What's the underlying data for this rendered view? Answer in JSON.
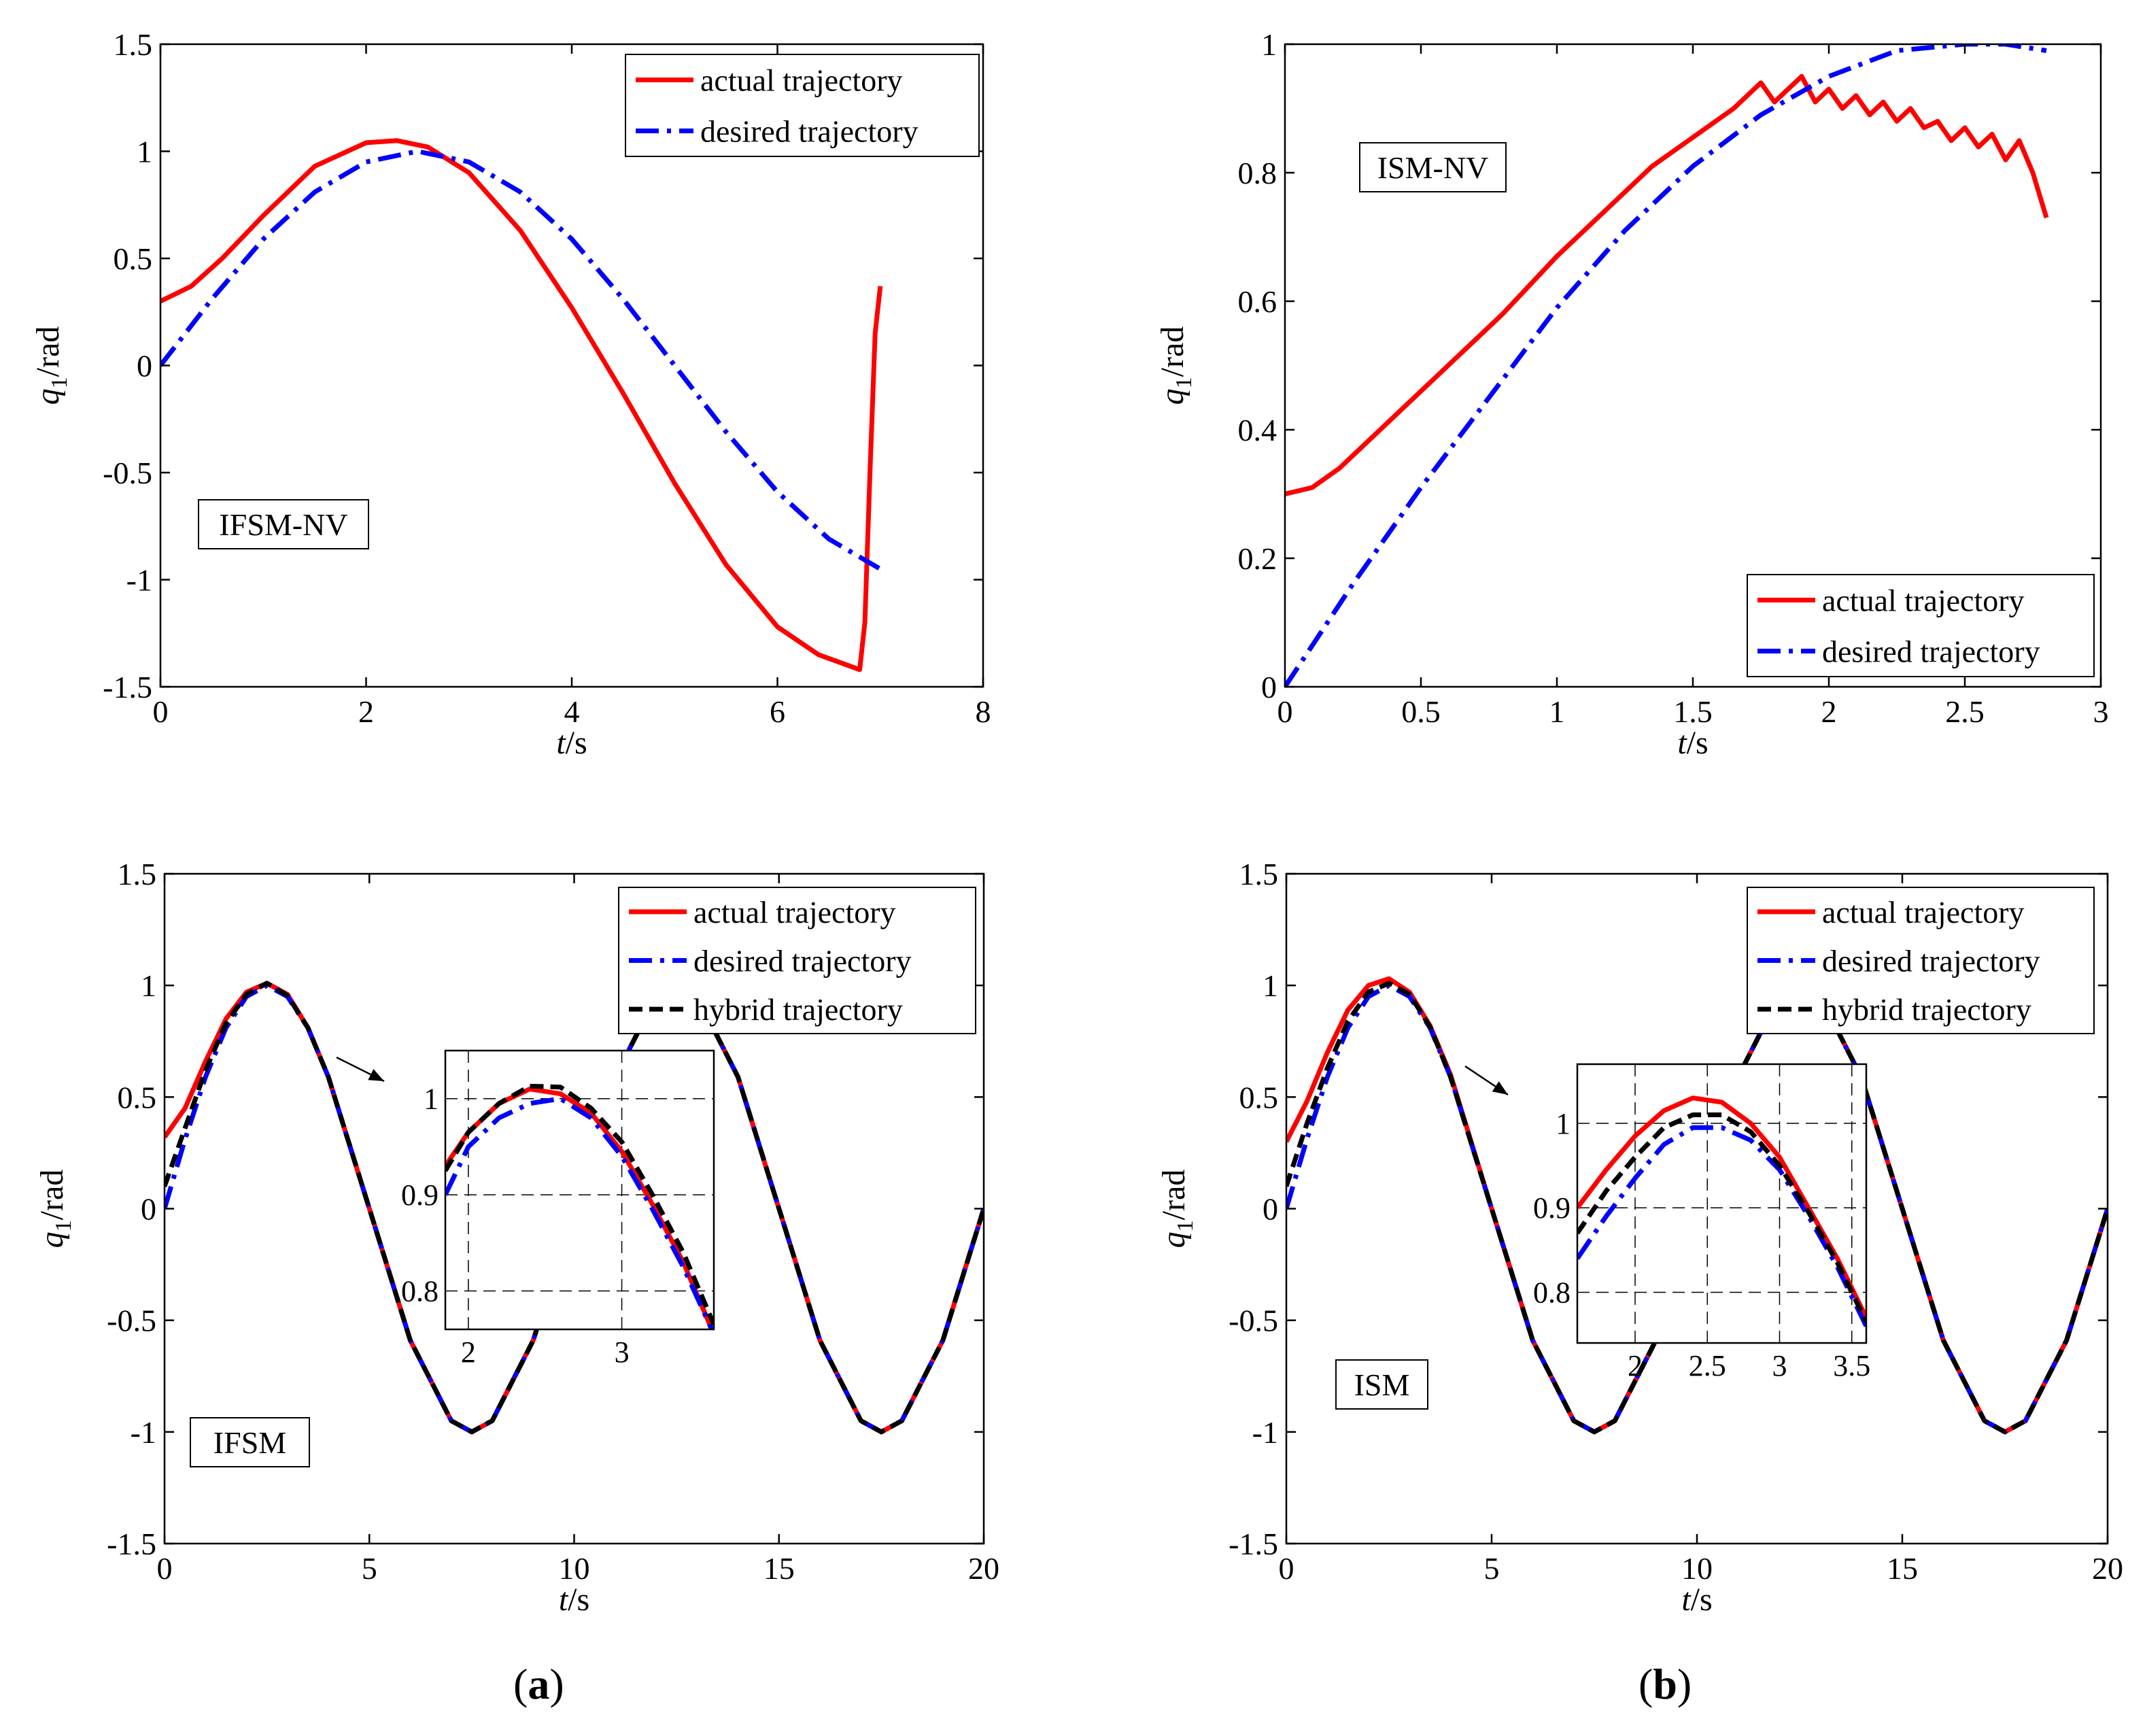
{
  "figure": {
    "captions": [
      {
        "open": "(",
        "letter": "a",
        "close": ")"
      },
      {
        "open": "(",
        "letter": "b",
        "close": ")"
      }
    ]
  },
  "colors": {
    "actual": "#ff0000",
    "desired": "#0000ff",
    "hybrid": "#000000",
    "axis": "#000000",
    "grid": "#000000"
  },
  "chart_data": [
    {
      "id": "top-left",
      "type": "line",
      "label": "IFSM-NV",
      "xlabel_var": "t",
      "xlabel_unit": "/s",
      "ylabel_var": "q",
      "ylabel_sub": "1",
      "ylabel_unit": "/rad",
      "xlim": [
        0,
        8
      ],
      "ylim": [
        -1.5,
        1.5
      ],
      "xticks": [
        0,
        2,
        4,
        6,
        8
      ],
      "xtick_labels": [
        "0",
        "2",
        "4",
        "6",
        "8"
      ],
      "yticks": [
        -1.5,
        -1,
        -0.5,
        0,
        0.5,
        1,
        1.5
      ],
      "ytick_labels": [
        "-1.5",
        "-1",
        "-0.5",
        "0",
        "0.5",
        "1",
        "1.5"
      ],
      "legend_position": "top-right",
      "series": [
        {
          "name": "actual trajectory",
          "style": "solid",
          "color": "#ff0000",
          "x": [
            0,
            0.3,
            0.6,
            1.0,
            1.5,
            2.0,
            2.3,
            2.6,
            3.0,
            3.5,
            4.0,
            4.5,
            5.0,
            5.5,
            6.0,
            6.4,
            6.8,
            6.85,
            6.9,
            6.95,
            7.0
          ],
          "y": [
            0.3,
            0.37,
            0.5,
            0.7,
            0.93,
            1.04,
            1.05,
            1.02,
            0.9,
            0.63,
            0.27,
            -0.13,
            -0.55,
            -0.93,
            -1.22,
            -1.35,
            -1.42,
            -1.2,
            -0.5,
            0.15,
            0.37
          ]
        },
        {
          "name": "desired trajectory",
          "style": "dashdot",
          "color": "#0000ff",
          "x": [
            0,
            0.5,
            1.0,
            1.5,
            2.0,
            2.5,
            3.0,
            3.5,
            4.0,
            4.5,
            5.0,
            5.5,
            6.0,
            6.5,
            7.0
          ],
          "y": [
            0,
            0.31,
            0.59,
            0.81,
            0.95,
            1.0,
            0.95,
            0.81,
            0.59,
            0.31,
            0,
            -0.31,
            -0.59,
            -0.81,
            -0.95
          ]
        }
      ]
    },
    {
      "id": "top-right",
      "type": "line",
      "label": "ISM-NV",
      "xlabel_var": "t",
      "xlabel_unit": "/s",
      "ylabel_var": "q",
      "ylabel_sub": "1",
      "ylabel_unit": "/rad",
      "xlim": [
        0,
        3
      ],
      "ylim": [
        0,
        1
      ],
      "xticks": [
        0,
        0.5,
        1,
        1.5,
        2,
        2.5,
        3
      ],
      "xtick_labels": [
        "0",
        "0.5",
        "1",
        "1.5",
        "2",
        "2.5",
        "3"
      ],
      "yticks": [
        0,
        0.2,
        0.4,
        0.6,
        0.8,
        1
      ],
      "ytick_labels": [
        "0",
        "0.2",
        "0.4",
        "0.6",
        "0.8",
        "1"
      ],
      "legend_position": "bottom-right",
      "series": [
        {
          "name": "actual trajectory",
          "style": "solid",
          "color": "#ff0000",
          "x": [
            0,
            0.1,
            0.2,
            0.4,
            0.6,
            0.8,
            1.0,
            1.2,
            1.35,
            1.45,
            1.55,
            1.65,
            1.75,
            1.8,
            1.85,
            1.9,
            1.95,
            2.0,
            2.05,
            2.1,
            2.15,
            2.2,
            2.25,
            2.3,
            2.35,
            2.4,
            2.45,
            2.5,
            2.55,
            2.6,
            2.65,
            2.7,
            2.75,
            2.8
          ],
          "y": [
            0.3,
            0.31,
            0.34,
            0.42,
            0.5,
            0.58,
            0.67,
            0.75,
            0.81,
            0.84,
            0.87,
            0.9,
            0.94,
            0.91,
            0.93,
            0.95,
            0.91,
            0.93,
            0.9,
            0.92,
            0.89,
            0.91,
            0.88,
            0.9,
            0.87,
            0.88,
            0.85,
            0.87,
            0.84,
            0.86,
            0.82,
            0.85,
            0.8,
            0.73
          ]
        },
        {
          "name": "desired trajectory",
          "style": "dashdot",
          "color": "#0000ff",
          "x": [
            0,
            0.25,
            0.5,
            0.75,
            1.0,
            1.25,
            1.5,
            1.75,
            2.0,
            2.25,
            2.5,
            2.65,
            2.8
          ],
          "y": [
            0,
            0.16,
            0.31,
            0.45,
            0.59,
            0.71,
            0.81,
            0.89,
            0.95,
            0.99,
            1.0,
            1.0,
            0.99
          ]
        }
      ]
    },
    {
      "id": "bottom-left",
      "type": "line",
      "label": "IFSM",
      "xlabel_var": "t",
      "xlabel_unit": "/s",
      "ylabel_var": "q",
      "ylabel_sub": "1",
      "ylabel_unit": "/rad",
      "xlim": [
        0,
        20
      ],
      "ylim": [
        -1.5,
        1.5
      ],
      "xticks": [
        0,
        5,
        10,
        15,
        20
      ],
      "xtick_labels": [
        "0",
        "5",
        "10",
        "15",
        "20"
      ],
      "yticks": [
        -1.5,
        -1,
        -0.5,
        0,
        0.5,
        1,
        1.5
      ],
      "ytick_labels": [
        "-1.5",
        "-1",
        "-0.5",
        "0",
        "0.5",
        "1",
        "1.5"
      ],
      "legend_position": "top-right",
      "series": [
        {
          "name": "actual trajectory",
          "style": "solid",
          "color": "#ff0000",
          "x": [
            0,
            0.5,
            1.0,
            1.5,
            2.0,
            2.5,
            3.0,
            3.5,
            4.0,
            5.0,
            6.0,
            7.0,
            7.5,
            8.0,
            9.0,
            10.0,
            11.0,
            12.0,
            12.5,
            13.0,
            14.0,
            15.0,
            16.0,
            17.0,
            17.5,
            18.0,
            19.0,
            20.0
          ],
          "y": [
            0.32,
            0.45,
            0.66,
            0.85,
            0.97,
            1.01,
            0.96,
            0.81,
            0.59,
            0,
            -0.59,
            -0.95,
            -1.0,
            -0.95,
            -0.59,
            0,
            0.59,
            0.95,
            1.0,
            0.95,
            0.59,
            0,
            -0.59,
            -0.95,
            -1.0,
            -0.95,
            -0.59,
            0
          ]
        },
        {
          "name": "desired trajectory",
          "style": "dashdot",
          "color": "#0000ff",
          "x": [
            0,
            0.5,
            1.0,
            1.5,
            2.0,
            2.5,
            3.0,
            3.5,
            4.0,
            5.0,
            6.0,
            7.0,
            7.5,
            8.0,
            9.0,
            10.0,
            11.0,
            12.0,
            12.5,
            13.0,
            14.0,
            15.0,
            16.0,
            17.0,
            17.5,
            18.0,
            19.0,
            20.0
          ],
          "y": [
            0,
            0.31,
            0.59,
            0.81,
            0.95,
            1.0,
            0.95,
            0.81,
            0.59,
            0,
            -0.59,
            -0.95,
            -1.0,
            -0.95,
            -0.59,
            0,
            0.59,
            0.95,
            1.0,
            0.95,
            0.59,
            0,
            -0.59,
            -0.95,
            -1.0,
            -0.95,
            -0.59,
            0
          ]
        },
        {
          "name": "hybrid trajectory",
          "style": "dashed",
          "color": "#000000",
          "x": [
            0,
            0.5,
            1.0,
            1.5,
            2.0,
            2.5,
            3.0,
            3.5,
            4.0,
            5.0,
            6.0,
            7.0,
            7.5,
            8.0,
            9.0,
            10.0,
            11.0,
            12.0,
            12.5,
            13.0,
            14.0,
            15.0,
            16.0,
            17.0,
            17.5,
            18.0,
            19.0,
            20.0
          ],
          "y": [
            0.1,
            0.36,
            0.62,
            0.83,
            0.96,
            1.01,
            0.955,
            0.81,
            0.59,
            0,
            -0.59,
            -0.95,
            -1.0,
            -0.95,
            -0.59,
            0,
            0.59,
            0.95,
            1.0,
            0.95,
            0.59,
            0,
            -0.59,
            -0.95,
            -1.0,
            -0.95,
            -0.59,
            0
          ]
        }
      ],
      "legend_series": [
        "actual trajectory",
        "desired trajectory",
        "hybrid trajectory"
      ],
      "inset": {
        "xlim": [
          1.85,
          3.6
        ],
        "ylim": [
          0.76,
          1.05
        ],
        "xticks": [
          2,
          3
        ],
        "xtick_labels": [
          "2",
          "3"
        ],
        "yticks": [
          0.8,
          0.9,
          1
        ],
        "ytick_labels": [
          "0.8",
          "0.9",
          "1"
        ],
        "grid": true,
        "series": [
          {
            "name": "actual trajectory",
            "style": "solid",
            "color": "#ff0000",
            "x": [
              1.85,
              2.0,
              2.2,
              2.4,
              2.6,
              2.8,
              3.0,
              3.2,
              3.4,
              3.6
            ],
            "y": [
              0.93,
              0.965,
              0.995,
              1.01,
              1.005,
              0.985,
              0.945,
              0.89,
              0.83,
              0.755
            ]
          },
          {
            "name": "desired trajectory",
            "style": "dashdot",
            "color": "#0000ff",
            "x": [
              1.85,
              2.0,
              2.2,
              2.4,
              2.6,
              2.8,
              3.0,
              3.2,
              3.4,
              3.6
            ],
            "y": [
              0.9,
              0.95,
              0.98,
              0.995,
              1.0,
              0.98,
              0.94,
              0.885,
              0.825,
              0.755
            ]
          },
          {
            "name": "hybrid trajectory",
            "style": "dashed",
            "color": "#000000",
            "x": [
              1.85,
              2.0,
              2.2,
              2.4,
              2.6,
              2.8,
              3.0,
              3.2,
              3.4,
              3.6
            ],
            "y": [
              0.925,
              0.965,
              0.995,
              1.013,
              1.012,
              0.99,
              0.955,
              0.9,
              0.84,
              0.765
            ]
          }
        ]
      }
    },
    {
      "id": "bottom-right",
      "type": "line",
      "label": "ISM",
      "xlabel_var": "t",
      "xlabel_unit": "/s",
      "ylabel_var": "q",
      "ylabel_sub": "1",
      "ylabel_unit": "/rad",
      "xlim": [
        0,
        20
      ],
      "ylim": [
        -1.5,
        1.5
      ],
      "xticks": [
        0,
        5,
        10,
        15,
        20
      ],
      "xtick_labels": [
        "0",
        "5",
        "10",
        "15",
        "20"
      ],
      "yticks": [
        -1.5,
        -1,
        -0.5,
        0,
        0.5,
        1,
        1.5
      ],
      "ytick_labels": [
        "-1.5",
        "-1",
        "-0.5",
        "0",
        "0.5",
        "1",
        "1.5"
      ],
      "legend_position": "top-right",
      "series": [
        {
          "name": "actual trajectory",
          "style": "solid",
          "color": "#ff0000",
          "x": [
            0,
            0.5,
            1.0,
            1.5,
            2.0,
            2.5,
            3.0,
            3.5,
            4.0,
            5.0,
            6.0,
            7.0,
            7.5,
            8.0,
            9.0,
            10.0,
            11.0,
            12.0,
            12.5,
            13.0,
            14.0,
            15.0,
            16.0,
            17.0,
            17.5,
            18.0,
            19.0,
            20.0
          ],
          "y": [
            0.3,
            0.48,
            0.7,
            0.89,
            1.0,
            1.03,
            0.97,
            0.82,
            0.6,
            0,
            -0.59,
            -0.95,
            -1.0,
            -0.95,
            -0.59,
            0,
            0.59,
            0.95,
            1.0,
            0.95,
            0.59,
            0,
            -0.59,
            -0.95,
            -1.0,
            -0.95,
            -0.59,
            0
          ]
        },
        {
          "name": "desired trajectory",
          "style": "dashdot",
          "color": "#0000ff",
          "x": [
            0,
            0.5,
            1.0,
            1.5,
            2.0,
            2.5,
            3.0,
            3.5,
            4.0,
            5.0,
            6.0,
            7.0,
            7.5,
            8.0,
            9.0,
            10.0,
            11.0,
            12.0,
            12.5,
            13.0,
            14.0,
            15.0,
            16.0,
            17.0,
            17.5,
            18.0,
            19.0,
            20.0
          ],
          "y": [
            0,
            0.31,
            0.59,
            0.81,
            0.95,
            1.0,
            0.95,
            0.81,
            0.59,
            0,
            -0.59,
            -0.95,
            -1.0,
            -0.95,
            -0.59,
            0,
            0.59,
            0.95,
            1.0,
            0.95,
            0.59,
            0,
            -0.59,
            -0.95,
            -1.0,
            -0.95,
            -0.59,
            0
          ]
        },
        {
          "name": "hybrid trajectory",
          "style": "dashed",
          "color": "#000000",
          "x": [
            0,
            0.5,
            1.0,
            1.5,
            2.0,
            2.5,
            3.0,
            3.5,
            4.0,
            5.0,
            6.0,
            7.0,
            7.5,
            8.0,
            9.0,
            10.0,
            11.0,
            12.0,
            12.5,
            13.0,
            14.0,
            15.0,
            16.0,
            17.0,
            17.5,
            18.0,
            19.0,
            20.0
          ],
          "y": [
            0.1,
            0.38,
            0.63,
            0.84,
            0.97,
            1.01,
            0.96,
            0.815,
            0.59,
            0,
            -0.59,
            -0.95,
            -1.0,
            -0.95,
            -0.59,
            0,
            0.59,
            0.95,
            1.0,
            0.95,
            0.59,
            0,
            -0.59,
            -0.95,
            -1.0,
            -0.95,
            -0.59,
            0
          ]
        }
      ],
      "legend_series": [
        "actual trajectory",
        "desired trajectory",
        "hybrid trajectory"
      ],
      "inset": {
        "xlim": [
          1.6,
          3.6
        ],
        "ylim": [
          0.74,
          1.07
        ],
        "xticks": [
          2,
          2.5,
          3,
          3.5
        ],
        "xtick_labels": [
          "2",
          "2.5",
          "3",
          "3.5"
        ],
        "yticks": [
          0.8,
          0.9,
          1
        ],
        "ytick_labels": [
          "0.8",
          "0.9",
          "1"
        ],
        "grid": true,
        "series": [
          {
            "name": "actual trajectory",
            "style": "solid",
            "color": "#ff0000",
            "x": [
              1.6,
              1.8,
              2.0,
              2.2,
              2.4,
              2.6,
              2.8,
              3.0,
              3.2,
              3.4,
              3.6
            ],
            "y": [
              0.9,
              0.945,
              0.985,
              1.015,
              1.03,
              1.025,
              1.0,
              0.96,
              0.9,
              0.84,
              0.77
            ]
          },
          {
            "name": "desired trajectory",
            "style": "dashdot",
            "color": "#0000ff",
            "x": [
              1.6,
              1.8,
              2.0,
              2.2,
              2.4,
              2.6,
              2.8,
              3.0,
              3.2,
              3.4,
              3.6
            ],
            "y": [
              0.84,
              0.89,
              0.935,
              0.975,
              0.995,
              0.995,
              0.98,
              0.945,
              0.89,
              0.83,
              0.76
            ]
          },
          {
            "name": "hybrid trajectory",
            "style": "dashed",
            "color": "#000000",
            "x": [
              1.6,
              1.8,
              2.0,
              2.2,
              2.4,
              2.6,
              2.8,
              3.0,
              3.2,
              3.4,
              3.6
            ],
            "y": [
              0.87,
              0.92,
              0.96,
              0.995,
              1.01,
              1.01,
              0.99,
              0.95,
              0.895,
              0.835,
              0.765
            ]
          }
        ]
      }
    }
  ]
}
